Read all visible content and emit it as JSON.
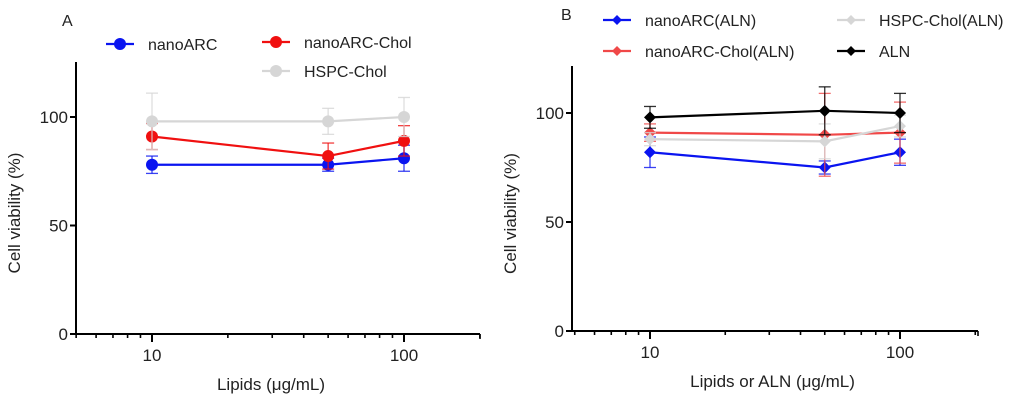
{
  "chart_data": [
    {
      "panel": "A",
      "type": "line",
      "title": "",
      "xlabel": "Lipids (μg/mL)",
      "ylabel": "Cell viability (%)",
      "xscale": "log",
      "xlim": [
        5,
        200
      ],
      "ylim": [
        0,
        125
      ],
      "xticks": [
        10,
        100
      ],
      "xtick_labels": [
        "10",
        "100"
      ],
      "yticks": [
        0,
        50,
        100
      ],
      "ytick_labels": [
        "0",
        "50",
        "100"
      ],
      "marker": "circle",
      "legend_placement": "top",
      "series": [
        {
          "name": "nanoARC",
          "color": "#0a14f0",
          "x": [
            10,
            50,
            100
          ],
          "y": [
            78,
            78,
            81
          ],
          "err": [
            4,
            3,
            6
          ]
        },
        {
          "name": "nanoARC-Chol",
          "color": "#f01010",
          "x": [
            10,
            50,
            100
          ],
          "y": [
            91,
            82,
            89
          ],
          "err": [
            6,
            6,
            7
          ]
        },
        {
          "name": "HSPC-Chol",
          "color": "#d6d6d6",
          "x": [
            10,
            50,
            100
          ],
          "y": [
            98,
            98,
            100
          ],
          "err": [
            13,
            6,
            9
          ]
        }
      ]
    },
    {
      "panel": "B",
      "type": "line",
      "title": "",
      "xlabel": "Lipids or ALN (μg/mL)",
      "ylabel": "Cell viability (%)",
      "xscale": "log",
      "xlim": [
        5,
        200
      ],
      "ylim": [
        0,
        125
      ],
      "xticks": [
        10,
        100
      ],
      "xtick_labels": [
        "10",
        "100"
      ],
      "yticks": [
        0,
        50,
        100
      ],
      "ytick_labels": [
        "0",
        "50",
        "100"
      ],
      "marker": "diamond",
      "legend_placement": "top",
      "series": [
        {
          "name": "nanoARC(ALN)",
          "color": "#0a14f0",
          "x": [
            10,
            50,
            100
          ],
          "y": [
            82,
            75,
            82
          ],
          "err": [
            7,
            3,
            6
          ]
        },
        {
          "name": "nanoARC-Chol(ALN)",
          "color": "#f04848",
          "x": [
            10,
            50,
            100
          ],
          "y": [
            91,
            90,
            91
          ],
          "err": [
            4,
            19,
            14
          ]
        },
        {
          "name": "HSPC-Chol(ALN)",
          "color": "#d6d6d6",
          "x": [
            10,
            50,
            100
          ],
          "y": [
            88,
            87,
            94
          ],
          "err": [
            3,
            8,
            5
          ]
        },
        {
          "name": "ALN",
          "color": "#000000",
          "x": [
            10,
            50,
            100
          ],
          "y": [
            98,
            101,
            100
          ],
          "err": [
            5,
            11,
            9
          ]
        }
      ]
    }
  ]
}
